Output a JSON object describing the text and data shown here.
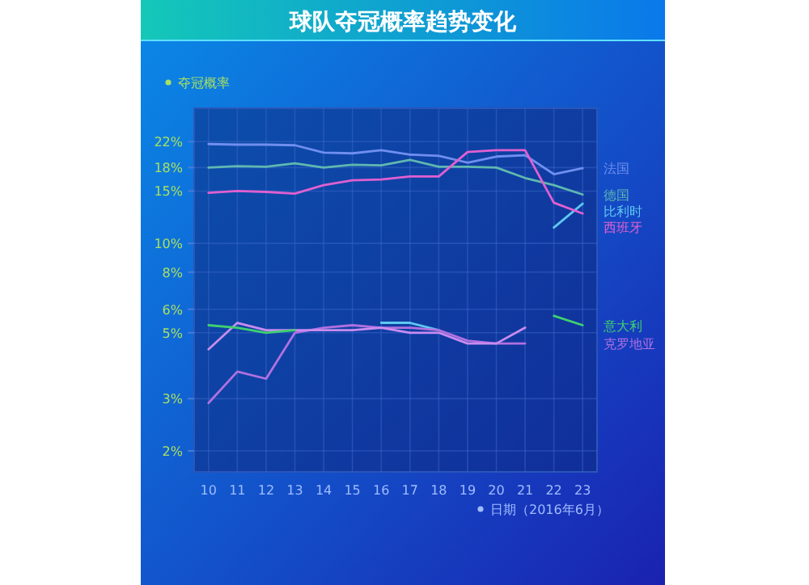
{
  "chart_data": {
    "type": "line",
    "title": "球队夺冠概率趋势变化",
    "ylabel": "夺冠概率",
    "xlabel": "日期（2016年6月）",
    "categories": [
      "10",
      "11",
      "12",
      "13",
      "14",
      "15",
      "16",
      "17",
      "18",
      "19",
      "20",
      "21",
      "22",
      "23"
    ],
    "series": [
      {
        "name": "法国",
        "color": "#6f8ff0",
        "values": [
          21.6,
          21.5,
          21.5,
          21.4,
          20.2,
          20.1,
          20.6,
          19.9,
          19.7,
          18.7,
          19.6,
          19.8,
          17.1,
          17.9
        ]
      },
      {
        "name": "德国",
        "color": "#5fb8b0",
        "values": [
          18,
          18.2,
          18.1,
          18.6,
          18,
          18.4,
          18.3,
          19.1,
          18.1,
          18.1,
          18,
          16.6,
          15.7,
          14.6
        ]
      },
      {
        "name": "比利时",
        "color": "#5ec8f0",
        "values": [
          null,
          null,
          null,
          null,
          null,
          null,
          5.4,
          5.4,
          5.1,
          null,
          null,
          null,
          11.3,
          13.6
        ]
      },
      {
        "name": "西班牙",
        "color": "#e060d0",
        "values": [
          14.8,
          15,
          14.9,
          14.7,
          15.7,
          16.3,
          16.4,
          16.8,
          16.8,
          20.3,
          20.6,
          20.6,
          13.7,
          12.6
        ]
      },
      {
        "name": "克罗地亚",
        "color": "#b070e0",
        "values": [
          2.9,
          3.7,
          3.5,
          5.0,
          5.2,
          5.3,
          5.2,
          5.2,
          5.1,
          4.7,
          4.6,
          4.6,
          null,
          null
        ]
      },
      {
        "color": "#c88cf0",
        "values": [
          4.4,
          5.4,
          5.1,
          5.1,
          5.1,
          5.1,
          5.2,
          5.0,
          5.0,
          4.6,
          4.6,
          5.2,
          null,
          null
        ]
      },
      {
        "name": "意大利",
        "color": "#40d070",
        "values": [
          5.3,
          5.2,
          5.0,
          5.1,
          null,
          null,
          null,
          null,
          null,
          null,
          null,
          null,
          5.7,
          5.3
        ]
      }
    ],
    "log": true,
    "ylim": [
      1.7,
      28.5
    ],
    "yticks": [
      {
        "value": 2,
        "label": "2%"
      },
      {
        "value": 3,
        "label": "3%"
      },
      {
        "value": 5,
        "label": "5%"
      },
      {
        "value": 6,
        "label": "6%"
      },
      {
        "value": 8,
        "label": "8%"
      },
      {
        "value": 10,
        "label": "10%"
      },
      {
        "value": 15,
        "label": "15%"
      },
      {
        "value": 18,
        "label": "18%"
      },
      {
        "value": 22,
        "label": "22%"
      }
    ],
    "grid": true
  }
}
